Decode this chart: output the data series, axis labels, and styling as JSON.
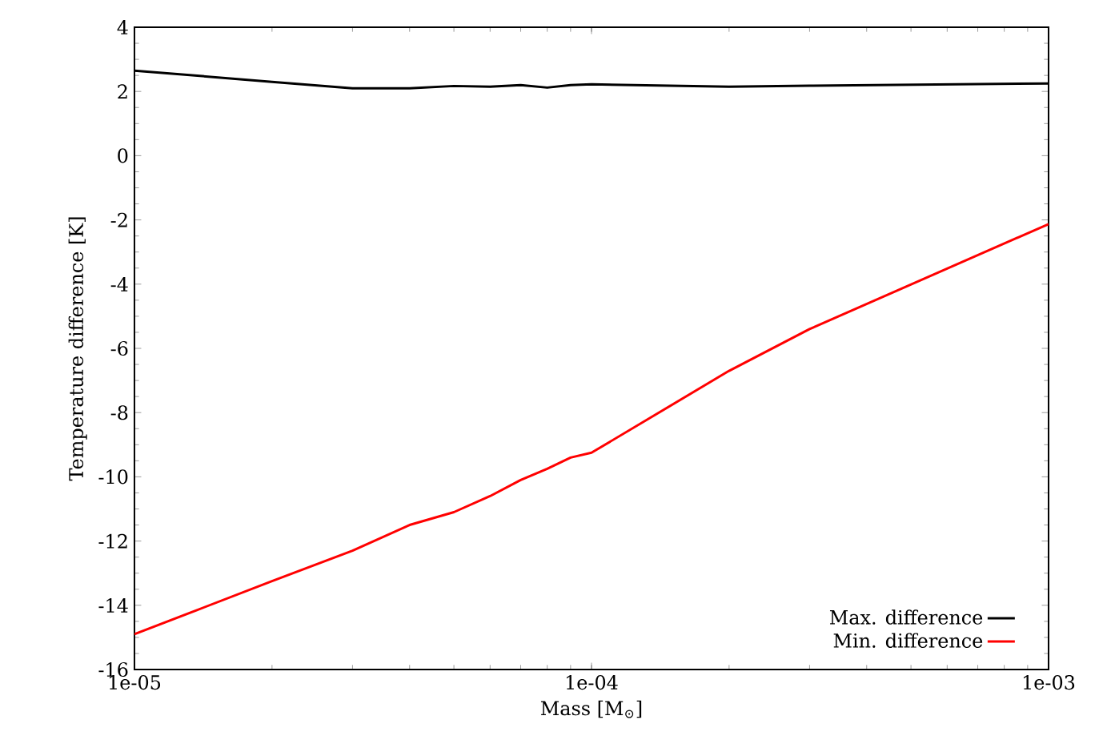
{
  "chart_data": {
    "type": "line",
    "xlabel": "Mass [M$_{⊙}$]",
    "ylabel": "Temperature difference [K]",
    "log": "x",
    "xlim": [
      1e-05,
      0.001
    ],
    "xticks": [
      {
        "value": 1e-05,
        "label": "1e-05"
      },
      {
        "value": 0.0001,
        "label": "1e-04"
      },
      {
        "value": 0.001,
        "label": "1e-03"
      }
    ],
    "ylim": [
      -16,
      4
    ],
    "yticks": [
      -16,
      -14,
      -12,
      -10,
      -8,
      -6,
      -4,
      -2,
      0,
      2,
      4
    ],
    "legend": "bottom right",
    "grid": false,
    "series": [
      {
        "name": "Max. difference",
        "color": "#000000",
        "x": [
          1e-05,
          2e-05,
          3e-05,
          4e-05,
          5e-05,
          6e-05,
          7e-05,
          8e-05,
          9e-05,
          0.0001,
          0.0002,
          0.0003,
          0.001
        ],
        "values": [
          2.65,
          2.3,
          2.1,
          2.1,
          2.17,
          2.15,
          2.2,
          2.12,
          2.2,
          2.22,
          2.15,
          2.18,
          2.25
        ]
      },
      {
        "name": "Min. difference",
        "color": "#ff0000",
        "x": [
          1e-05,
          2e-05,
          3e-05,
          4e-05,
          5e-05,
          6e-05,
          7e-05,
          8e-05,
          9e-05,
          0.0001,
          0.0002,
          0.0003,
          0.001
        ],
        "values": [
          -14.9,
          -13.25,
          -12.3,
          -11.5,
          -11.1,
          -10.6,
          -10.1,
          -9.75,
          -9.4,
          -9.25,
          -6.7,
          -5.4,
          -2.13
        ]
      }
    ]
  }
}
